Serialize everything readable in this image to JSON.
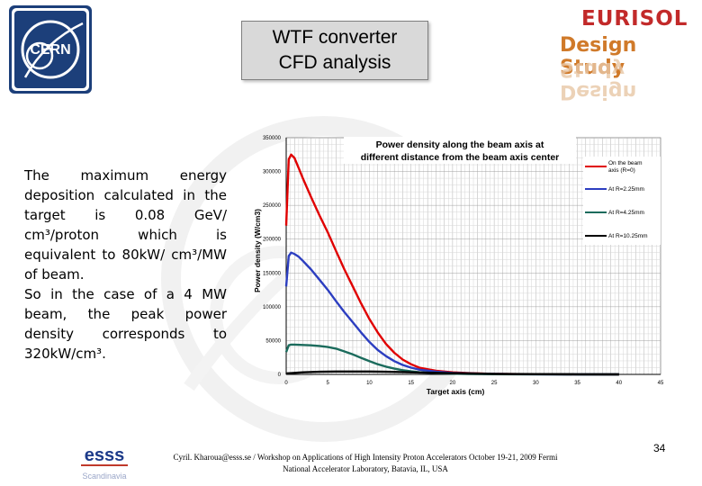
{
  "slide": {
    "title_line1": "WTF converter",
    "title_line2": "CFD analysis",
    "eurisol_line1": "EURISOL",
    "eurisol_line2": "Design Study",
    "body_p1": "The maximum energy deposition calculated in the target is 0.08 GeV/ cm³/proton which is equivalent to 80kW/ cm³/MW of beam.",
    "body_p2": "So in the case of a 4 MW beam, the peak power density corresponds to 320kW/cm³.",
    "footer_line1": "Cyril. Kharoua@esss.se / Workshop on Applications of High Intensity Proton Accelerators October 19-21, 2009  Fermi",
    "footer_line2": "National Accelerator Laboratory, Batavia, IL, USA",
    "page_number": "34",
    "esss_label": "esss",
    "esss_sublabel": "Scandinavia",
    "cern_label": "CERN"
  },
  "chart_data": {
    "type": "line",
    "title": "Power density along the beam axis at different distance from the beam axis center",
    "xlabel": "Target axis (cm)",
    "ylabel": "Power density (W/cm3)",
    "xlim": [
      0,
      45
    ],
    "ylim": [
      0,
      350000
    ],
    "xticks": [
      0,
      5,
      10,
      15,
      20,
      25,
      30,
      35,
      40,
      45
    ],
    "yticks": [
      0,
      50000,
      100000,
      150000,
      200000,
      250000,
      300000,
      350000
    ],
    "grid": true,
    "legend_position": "right",
    "series": [
      {
        "name": "On the beam axis (R=0)",
        "color": "#e00000",
        "x": [
          0,
          0.3,
          0.6,
          1,
          1.5,
          2,
          3,
          4,
          5,
          6,
          7,
          8,
          9,
          10,
          11,
          12,
          13,
          14,
          15,
          16,
          18,
          20,
          22,
          25,
          28,
          30,
          35,
          40
        ],
        "y": [
          220000,
          318000,
          325000,
          320000,
          305000,
          290000,
          262000,
          235000,
          210000,
          182000,
          155000,
          130000,
          105000,
          82000,
          62000,
          45000,
          32000,
          22000,
          15000,
          10000,
          5500,
          3000,
          1800,
          800,
          400,
          200,
          80,
          30
        ]
      },
      {
        "name": "At R=2.25mm",
        "color": "#2c3ec0",
        "x": [
          0,
          0.3,
          0.6,
          1,
          1.5,
          2,
          3,
          4,
          5,
          6,
          7,
          8,
          9,
          10,
          11,
          12,
          13,
          14,
          15,
          16,
          18,
          20,
          22,
          25,
          28,
          30,
          35,
          40
        ],
        "y": [
          130000,
          175000,
          180000,
          178000,
          174000,
          168000,
          155000,
          140000,
          125000,
          108000,
          92000,
          77000,
          62000,
          48000,
          36000,
          27000,
          19500,
          14000,
          10000,
          7000,
          4000,
          2200,
          1300,
          600,
          300,
          150,
          60,
          25
        ]
      },
      {
        "name": "At R=4.25mm",
        "color": "#1b6b5c",
        "x": [
          0,
          0.3,
          0.6,
          1,
          2,
          3,
          4,
          5,
          6,
          7,
          8,
          9,
          10,
          11,
          12,
          13,
          14,
          15,
          16,
          18,
          20,
          22,
          25,
          28,
          30,
          35,
          40
        ],
        "y": [
          33000,
          43000,
          44000,
          44000,
          43500,
          43000,
          42000,
          40500,
          38000,
          34000,
          29500,
          24500,
          19500,
          15000,
          11500,
          8500,
          6200,
          4500,
          3200,
          1800,
          1000,
          600,
          300,
          150,
          80,
          30,
          10
        ]
      },
      {
        "name": "At R=10.25mm",
        "color": "#000000",
        "x": [
          0,
          2,
          4,
          6,
          8,
          10,
          12,
          14,
          16,
          18,
          20,
          22,
          25,
          30,
          35,
          40
        ],
        "y": [
          1500,
          3000,
          3800,
          4200,
          4300,
          4200,
          3900,
          3400,
          2800,
          2200,
          1700,
          1300,
          800,
          400,
          150,
          60
        ]
      }
    ]
  }
}
